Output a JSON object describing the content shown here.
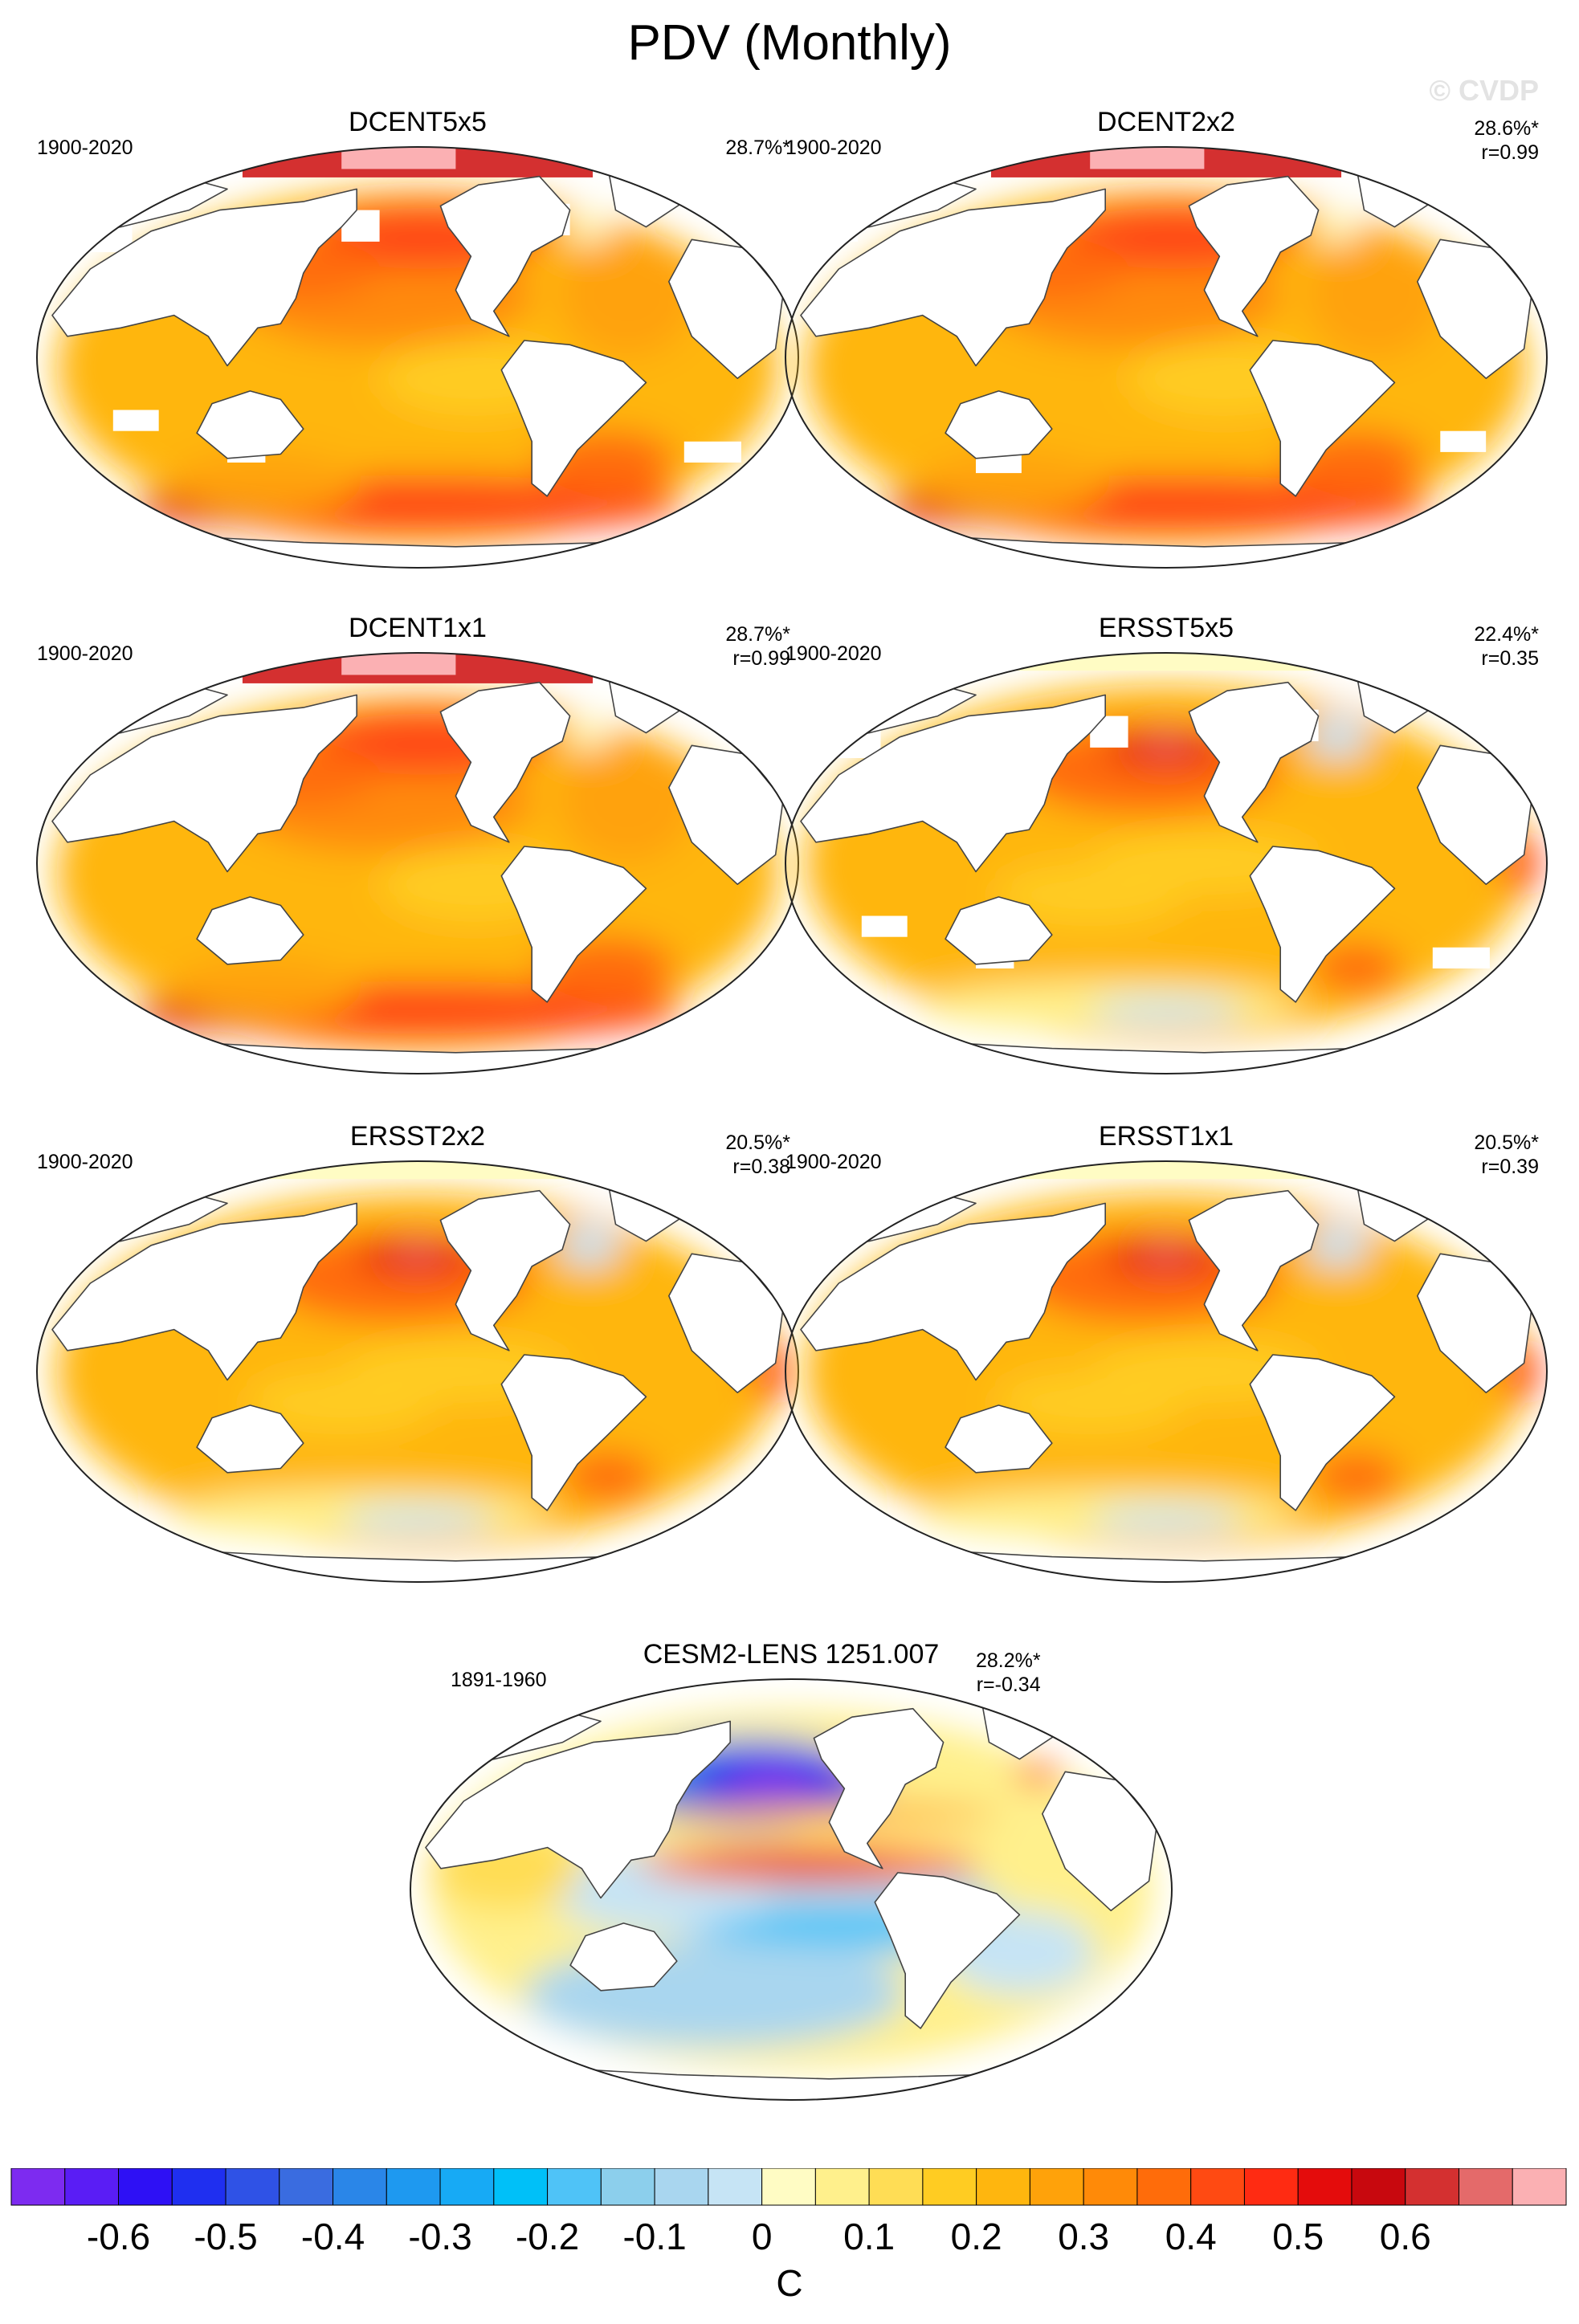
{
  "title": "PDV (Monthly)",
  "watermark": "© CVDP",
  "chart_data": {
    "type": "heatmap",
    "title": "PDV (Monthly)",
    "description_unit": "C",
    "panels": [
      {
        "name": "DCENT5x5",
        "period": "1900-2020",
        "variance": "28.7%*",
        "r": null,
        "style": "dcent",
        "mask": 2
      },
      {
        "name": "DCENT2x2",
        "period": "1900-2020",
        "variance": "28.6%*",
        "r": "r=0.99",
        "style": "dcent",
        "mask": 1
      },
      {
        "name": "DCENT1x1",
        "period": "1900-2020",
        "variance": "28.7%*",
        "r": "r=0.99",
        "style": "dcent",
        "mask": 0
      },
      {
        "name": "ERSST5x5",
        "period": "1900-2020",
        "variance": "22.4%*",
        "r": "r=0.35",
        "style": "ersst",
        "mask": 2
      },
      {
        "name": "ERSST2x2",
        "period": "1900-2020",
        "variance": "20.5%*",
        "r": "r=0.38",
        "style": "ersst",
        "mask": 0
      },
      {
        "name": "ERSST1x1",
        "period": "1900-2020",
        "variance": "20.5%*",
        "r": "r=0.39",
        "style": "ersst",
        "mask": 0
      },
      {
        "name": "CESM2-LENS 1251.007",
        "period": "1891-1960",
        "variance": "28.2%*",
        "r": "r=-0.34",
        "style": "cesm",
        "mask": 0
      }
    ],
    "colorbar": {
      "unit": "C",
      "levels": [
        -0.7,
        -0.65,
        -0.6,
        -0.55,
        -0.5,
        -0.45,
        -0.4,
        -0.35,
        -0.3,
        -0.25,
        -0.2,
        -0.15,
        -0.1,
        -0.05,
        0,
        0.05,
        0.1,
        0.15,
        0.2,
        0.25,
        0.3,
        0.35,
        0.4,
        0.45,
        0.5,
        0.55,
        0.6,
        0.65,
        0.7
      ],
      "tick_labels": [
        "-0.6",
        "-0.5",
        "-0.4",
        "-0.3",
        "-0.2",
        "-0.1",
        "0",
        "0.1",
        "0.2",
        "0.3",
        "0.4",
        "0.5",
        "0.6"
      ],
      "colors": [
        "#7d2bf0",
        "#5a1df5",
        "#2e10f5",
        "#1f2ff0",
        "#2f52e6",
        "#3a6ce0",
        "#2a86e8",
        "#1e99f0",
        "#17aaf5",
        "#00c0f8",
        "#4fc3f7",
        "#8ccfec",
        "#a9d6ef",
        "#c6e4f5",
        "#fffcc4",
        "#fff08c",
        "#ffdd55",
        "#ffcc22",
        "#ffb60e",
        "#ffa20a",
        "#ff8a08",
        "#ff6c0a",
        "#ff4a12",
        "#ff2b12",
        "#e40c0c",
        "#c8080e",
        "#d43030",
        "#e46a6a",
        "#fbb0b3"
      ]
    }
  }
}
